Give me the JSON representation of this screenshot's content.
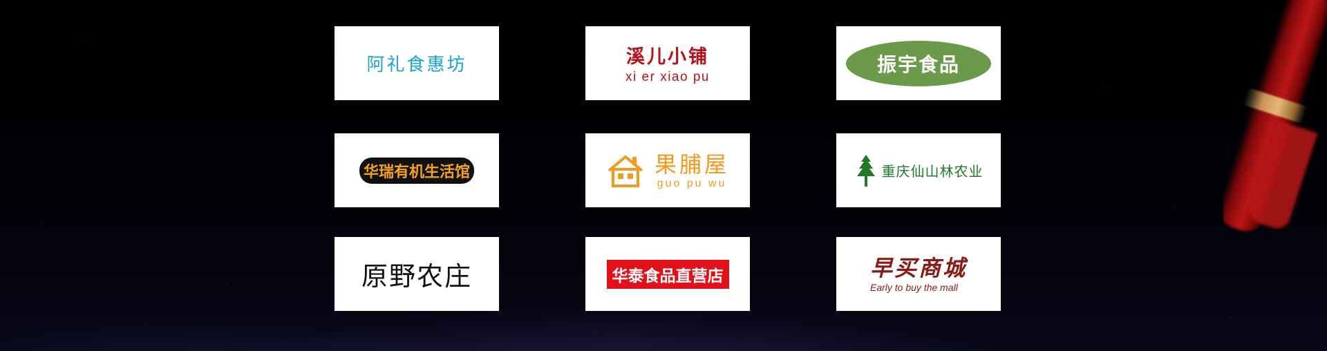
{
  "brands": [
    {
      "name": "阿礼食惠坊",
      "color": "#1aa3d9"
    },
    {
      "name": "溪儿小铺",
      "subtitle": "xi er xiao pu",
      "color": "#b5121b"
    },
    {
      "name": "振宇食品",
      "color": "#6a9a4a"
    },
    {
      "name": "华瑞有机生活馆",
      "color": "#f4a21b"
    },
    {
      "name": "果脯屋",
      "subtitle": "guo pu wu",
      "icon": "house-icon",
      "color": "#f39a1e"
    },
    {
      "name": "重庆仙山林农业",
      "icon": "tree-icon",
      "color": "#1e7b2a"
    },
    {
      "name": "原野农庄",
      "color": "#111111"
    },
    {
      "name": "华泰食品直营店",
      "color": "#e3101a"
    },
    {
      "name": "早买商城",
      "subtitle": "Early to buy the mall",
      "color": "#8a1a14"
    }
  ]
}
